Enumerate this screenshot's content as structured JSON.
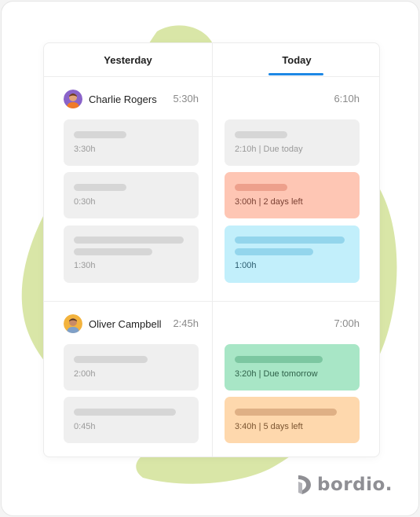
{
  "tabs": [
    {
      "label": "Yesterday"
    },
    {
      "label": "Today"
    }
  ],
  "users": [
    {
      "name": "Charlie Rogers",
      "yesterday_total": "5:30h",
      "today_total": "6:10h",
      "yesterday_tasks": [
        {
          "label": "3:30h"
        },
        {
          "label": "0:30h"
        },
        {
          "label": "1:30h"
        }
      ],
      "today_tasks": [
        {
          "label": "2:10h | Due today",
          "color": "#efefef"
        },
        {
          "label": "3:00h | 2 days left",
          "color": "#fec6b4"
        },
        {
          "label": "1:00h",
          "color": "#c2effb"
        }
      ]
    },
    {
      "name": "Oliver Campbell",
      "yesterday_total": "2:45h",
      "today_total": "7:00h",
      "yesterday_tasks": [
        {
          "label": "2:00h"
        },
        {
          "label": "0:45h"
        }
      ],
      "today_tasks": [
        {
          "label": "3:20h | Due tomorrow",
          "color": "#a8e6c6"
        },
        {
          "label": "3:40h | 5 days left",
          "color": "#fed8ad"
        }
      ]
    }
  ],
  "brand": {
    "name": "bordio.",
    "accent": "#1e88e5",
    "blob_color": "#d9e6a7"
  }
}
